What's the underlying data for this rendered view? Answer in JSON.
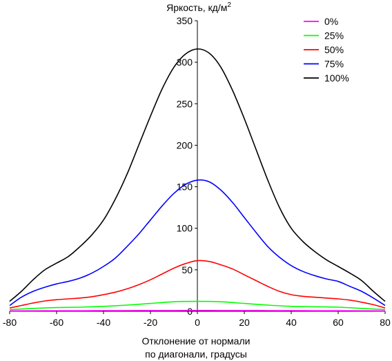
{
  "chart_data": {
    "type": "line",
    "title": "",
    "ylabel": "Яркость, кд/м",
    "ylabel_superscript": "2",
    "xlabel_line1": "Отклонение от нормали",
    "xlabel_line2": "по диагонали, градусы",
    "xlim": [
      -80,
      80
    ],
    "ylim": [
      0,
      350
    ],
    "xticks": [
      -80,
      -60,
      -40,
      -20,
      0,
      20,
      40,
      60,
      80
    ],
    "yticks": [
      0,
      50,
      100,
      150,
      200,
      250,
      300,
      350
    ],
    "grid": false,
    "legend_position": "top-right",
    "series": [
      {
        "name": "0%",
        "color": "#ff00ff",
        "x": [
          -80,
          -70,
          -60,
          -50,
          -40,
          -30,
          -20,
          -10,
          0,
          10,
          20,
          30,
          40,
          50,
          60,
          70,
          80
        ],
        "y": [
          0.5,
          0.6,
          0.7,
          0.7,
          0.8,
          0.8,
          0.9,
          0.9,
          1.0,
          0.9,
          0.9,
          0.8,
          0.8,
          0.7,
          0.7,
          0.6,
          0.5
        ]
      },
      {
        "name": "25%",
        "color": "#00ff00",
        "x": [
          -80,
          -70,
          -60,
          -50,
          -40,
          -30,
          -20,
          -10,
          0,
          10,
          20,
          30,
          40,
          50,
          60,
          70,
          80
        ],
        "y": [
          2,
          3.5,
          4.5,
          5,
          6,
          7.5,
          9.5,
          11.5,
          12,
          11.5,
          9.5,
          7.5,
          6,
          5.5,
          5,
          3.5,
          2
        ]
      },
      {
        "name": "50%",
        "color": "#ff0000",
        "x": [
          -80,
          -75,
          -70,
          -65,
          -60,
          -55,
          -50,
          -45,
          -40,
          -35,
          -30,
          -25,
          -20,
          -15,
          -10,
          -5,
          0,
          5,
          10,
          15,
          20,
          25,
          30,
          35,
          40,
          45,
          50,
          55,
          60,
          65,
          70,
          75,
          80
        ],
        "y": [
          4,
          7,
          10,
          12.5,
          14,
          15,
          16,
          17.5,
          20,
          23,
          27,
          32,
          38,
          45,
          52,
          57.5,
          61,
          60,
          56,
          51,
          44,
          37,
          30,
          24,
          20,
          18,
          17,
          16,
          15,
          13.5,
          11,
          8,
          4
        ]
      },
      {
        "name": "75%",
        "color": "#0000ff",
        "x": [
          -80,
          -75,
          -70,
          -65,
          -60,
          -55,
          -50,
          -45,
          -40,
          -35,
          -30,
          -25,
          -20,
          -15,
          -10,
          -5,
          0,
          5,
          10,
          15,
          20,
          25,
          30,
          35,
          40,
          45,
          50,
          55,
          60,
          65,
          70,
          75,
          80
        ],
        "y": [
          7,
          17,
          24,
          29,
          33,
          36,
          40,
          46,
          54,
          64,
          78,
          93,
          110,
          127,
          142,
          153,
          158,
          156,
          146,
          131,
          113,
          95,
          78,
          65,
          55,
          48,
          43,
          39,
          36,
          30,
          24,
          16,
          7
        ]
      },
      {
        "name": "100%",
        "color": "#000000",
        "x": [
          -80,
          -75,
          -70,
          -65,
          -60,
          -55,
          -50,
          -45,
          -40,
          -35,
          -30,
          -25,
          -20,
          -15,
          -10,
          -5,
          0,
          5,
          10,
          15,
          20,
          25,
          30,
          35,
          40,
          45,
          50,
          55,
          60,
          65,
          70,
          75,
          80
        ],
        "y": [
          12,
          24,
          38,
          50,
          58,
          66,
          78,
          92,
          110,
          135,
          165,
          200,
          235,
          268,
          294,
          310,
          316,
          311,
          294,
          266,
          232,
          195,
          158,
          125,
          100,
          84,
          72,
          62,
          54,
          46,
          37,
          24,
          12
        ]
      }
    ]
  }
}
